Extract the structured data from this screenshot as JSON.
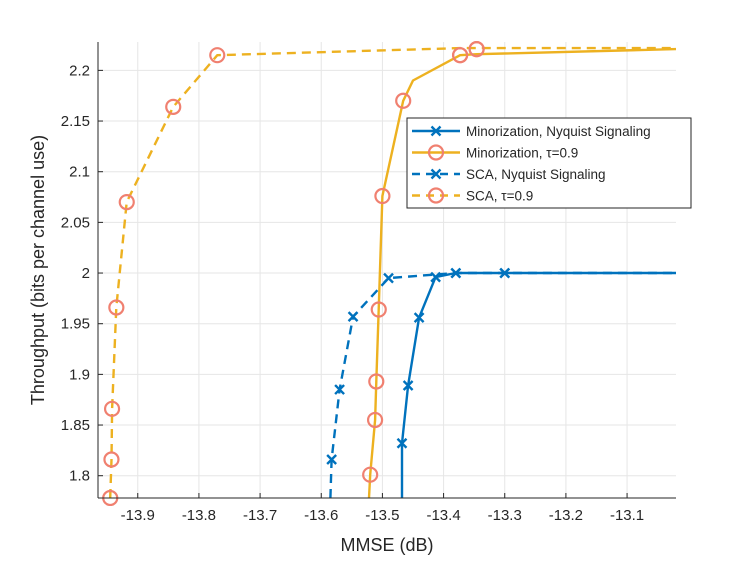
{
  "chart_data": {
    "type": "line",
    "title": "",
    "xlabel": "MMSE (dB)",
    "ylabel": "Throughput (bits per channel use)",
    "xlim": [
      -13.965,
      -13.02
    ],
    "ylim": [
      1.778,
      2.228
    ],
    "xticks": [
      -13.9,
      -13.8,
      -13.7,
      -13.6,
      -13.5,
      -13.4,
      -13.3,
      -13.2,
      -13.1
    ],
    "xtick_labels": [
      "-13.9",
      "-13.8",
      "-13.7",
      "-13.6",
      "-13.5",
      "-13.4",
      "-13.3",
      "-13.2",
      "-13.1"
    ],
    "yticks": [
      1.8,
      1.85,
      1.9,
      1.95,
      2.0,
      2.05,
      2.1,
      2.15,
      2.2
    ],
    "ytick_labels": [
      "1.8",
      "1.85",
      "1.9",
      "1.95",
      "2",
      "2.05",
      "2.1",
      "2.15",
      "2.2"
    ],
    "grid": true,
    "legend_position": "upper-right",
    "colors": {
      "blue": "#0072BD",
      "orange": "#EDB120",
      "marker_circle": "#F08070",
      "axis": "#262626",
      "grid": "#e6e6e6"
    },
    "series": [
      {
        "name": "Minorization, Nyquist Signaling",
        "color": "#0072BD",
        "line_style": "solid",
        "marker": "x",
        "x": [
          -13.468,
          -13.468,
          -13.458,
          -13.44,
          -13.413,
          -13.38,
          -13.3,
          -13.02
        ],
        "y": [
          1.778,
          1.832,
          1.889,
          1.956,
          1.996,
          2.0,
          2.0,
          2.0
        ],
        "marker_x": [
          -13.468,
          -13.458,
          -13.44,
          -13.413,
          -13.38,
          -13.3
        ],
        "marker_y": [
          1.832,
          1.889,
          1.956,
          1.996,
          2.0,
          2.0
        ]
      },
      {
        "name": "Minorization, τ=0.9",
        "color": "#EDB120",
        "marker_color": "#F08070",
        "line_style": "solid",
        "marker": "o",
        "x": [
          -13.522,
          -13.52,
          -13.512,
          -13.51,
          -13.506,
          -13.5,
          -13.466,
          -13.45,
          -13.373,
          -13.346,
          -13.02
        ],
        "y": [
          1.778,
          1.801,
          1.855,
          1.893,
          1.964,
          2.076,
          2.17,
          2.19,
          2.215,
          2.216,
          2.221
        ],
        "marker_x": [
          -13.52,
          -13.512,
          -13.51,
          -13.506,
          -13.5,
          -13.466,
          -13.373,
          -13.346
        ],
        "marker_y": [
          1.801,
          1.855,
          1.893,
          1.964,
          2.076,
          2.17,
          2.215,
          2.221
        ]
      },
      {
        "name": "SCA, Nyquist Signaling",
        "color": "#0072BD",
        "line_style": "dashed",
        "marker": "x",
        "x": [
          -13.585,
          -13.583,
          -13.57,
          -13.548,
          -13.49,
          -13.38,
          -13.3,
          -13.02
        ],
        "y": [
          1.778,
          1.816,
          1.885,
          1.957,
          1.995,
          2.0,
          2.0,
          2.0
        ],
        "marker_x": [
          -13.583,
          -13.57,
          -13.548,
          -13.49,
          -13.38,
          -13.3
        ],
        "marker_y": [
          1.816,
          1.885,
          1.957,
          1.995,
          2.0,
          2.0
        ]
      },
      {
        "name": "SCA, τ=0.9",
        "color": "#EDB120",
        "marker_color": "#F08070",
        "line_style": "dashed",
        "marker": "o",
        "x": [
          -13.945,
          -13.943,
          -13.942,
          -13.935,
          -13.918,
          -13.842,
          -13.77,
          -13.373,
          -13.02
        ],
        "y": [
          1.778,
          1.816,
          1.866,
          1.966,
          2.07,
          2.164,
          2.215,
          2.222,
          2.222
        ],
        "marker_x": [
          -13.945,
          -13.943,
          -13.942,
          -13.935,
          -13.918,
          -13.842,
          -13.77,
          -13.373,
          -13.346
        ],
        "marker_y": [
          1.778,
          1.816,
          1.866,
          1.966,
          2.07,
          2.164,
          2.215,
          2.215,
          2.221
        ]
      }
    ]
  }
}
